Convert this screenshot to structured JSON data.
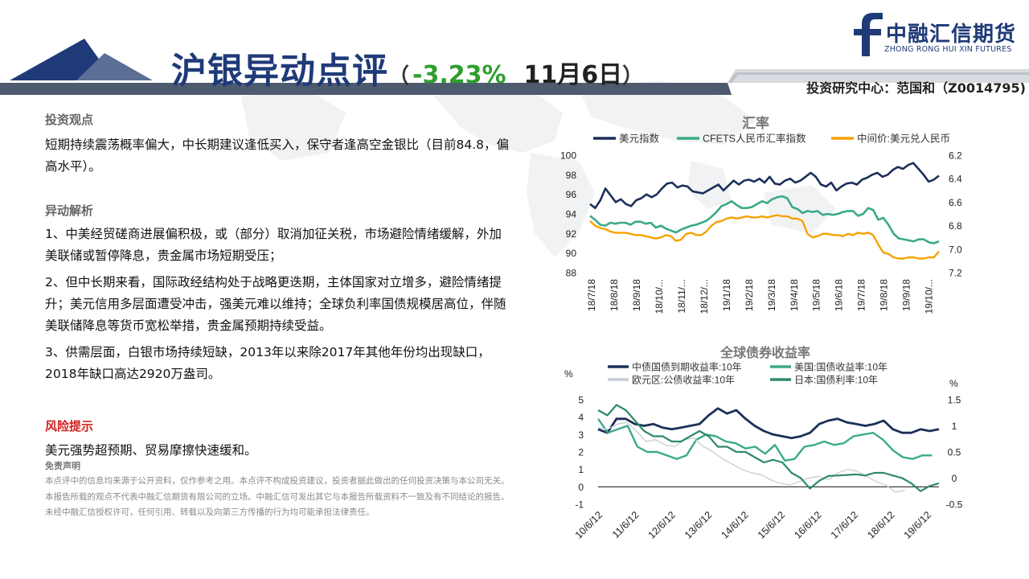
{
  "header": {
    "title": "沪银异动点评",
    "paren_open": "（",
    "change": "-3.23%",
    "date": "11月6日",
    "paren_close": "）",
    "logo_name": "中融汇信期货",
    "logo_en": "ZHONG RONG HUI XIN FUTURES",
    "author": "投资研究中心：范国和（Z0014795)"
  },
  "content": {
    "view_title": "投资观点",
    "view_text": "短期持续震荡概率偏大，中长期建议逢低买入，保守者逢高空金银比（目前84.8，偏高水平）。",
    "analysis_title": "异动解析",
    "analysis_items": [
      "1、中美经贸磋商进展偏积极，或（部分）取消加征关税，市场避险情绪缓解，外加美联储或暂停降息，贵金属市场短期受压；",
      "2、但中长期来看，国际政经结构处于战略更迭期，主体国家对立增多，避险情绪提升；美元信用多层面遭受冲击，强美元难以维持；全球负利率国债规模居高位，伴随美联储降息等货币宽松举措，贵金属预期持续受益。",
      "3、供需层面，白银市场持续短缺，2013年以来除2017年其他年份均出现缺口，2018年缺口高达2920万盎司。"
    ],
    "risk_title": "风险提示",
    "risk_text": "美元强势超预期、贸易摩擦快速缓和。",
    "disclaimer_title": "免责声明",
    "disclaimer_text": "本点评中的信息均来源于公开资料，仅作参考之用。本点评不构成投资建议，投资者据此做出的任何投资决策与本公司无关。本报告所载的观点不代表中融汇信期货有限公司的立场。中融汇信可发出其它与本报告所载资料不一致及有不同结论的报告。未经中融汇信授权许可，任何引用、转载以及向第三方传播的行为均可能承担法律责任。"
  },
  "chart_data": [
    {
      "type": "line",
      "title": "汇率",
      "x_ticks": [
        "18/7/18",
        "18/8/18",
        "18/9/18",
        "18/10/...",
        "18/11/...",
        "18/12/...",
        "19/1/18",
        "19/2/18",
        "19/3/18",
        "19/4/18",
        "19/5/18",
        "19/6/18",
        "19/7/18",
        "19/8/18",
        "19/9/18",
        "19/10/..."
      ],
      "y_left": {
        "ticks": [
          88,
          90,
          92,
          94,
          96,
          98,
          100
        ],
        "range": [
          88,
          100
        ]
      },
      "y_right": {
        "ticks": [
          "6.2",
          "6.4",
          "6.6",
          "6.8",
          "7.0",
          "7.2"
        ],
        "range": [
          6.2,
          7.2
        ],
        "inverted": true
      },
      "series": [
        {
          "name": "美元指数",
          "axis": "left",
          "color": "#1c2f5a",
          "values": [
            95.0,
            94.6,
            95.4,
            96.6,
            95.9,
            95.2,
            95.5,
            95.0,
            94.8,
            95.4,
            95.6,
            96.0,
            95.7,
            96.0,
            96.6,
            97.1,
            97.2,
            96.7,
            96.9,
            96.8,
            96.3,
            96.2,
            96.1,
            96.4,
            96.7,
            97.0,
            96.4,
            96.9,
            97.4,
            97.0,
            97.4,
            97.5,
            97.3,
            97.6,
            97.2,
            97.8,
            97.1,
            97.0,
            97.4,
            97.6,
            97.2,
            97.4,
            97.8,
            98.2,
            97.8,
            97.0,
            96.8,
            97.2,
            96.4,
            96.8,
            97.1,
            97.2,
            97.0,
            97.5,
            97.7,
            98.0,
            98.2,
            97.8,
            98.0,
            98.5,
            98.8,
            98.6,
            99.0,
            99.2,
            98.6,
            98.0,
            97.3,
            97.5,
            97.9
          ]
        },
        {
          "name": "CFETS人民币汇率指数",
          "axis": "left",
          "color": "#3aaa88",
          "values": [
            93.8,
            93.4,
            92.9,
            92.8,
            93.1,
            93.0,
            93.1,
            93.1,
            92.9,
            93.2,
            93.2,
            93.0,
            93.1,
            92.6,
            92.8,
            92.5,
            92.3,
            92.1,
            92.4,
            92.6,
            92.8,
            92.9,
            93.1,
            93.3,
            93.7,
            94.2,
            94.8,
            95.0,
            95.3,
            94.9,
            94.6,
            94.6,
            94.7,
            95.0,
            95.3,
            95.1,
            95.5,
            95.7,
            95.8,
            95.6,
            94.7,
            94.5,
            94.1,
            94.3,
            94.2,
            94.3,
            93.9,
            94.0,
            93.9,
            94.0,
            94.2,
            94.3,
            94.3,
            93.8,
            94.0,
            94.6,
            94.4,
            93.4,
            93.6,
            92.9,
            92.0,
            91.5,
            91.4,
            91.3,
            91.2,
            91.4,
            91.4,
            91.1,
            91.0,
            91.2
          ]
        },
        {
          "name": "中间价:美元兑人民币",
          "axis": "right",
          "color": "#f5a300",
          "values": [
            6.76,
            6.8,
            6.82,
            6.83,
            6.85,
            6.86,
            6.86,
            6.86,
            6.87,
            6.88,
            6.88,
            6.89,
            6.9,
            6.91,
            6.9,
            6.88,
            6.89,
            6.93,
            6.92,
            6.87,
            6.86,
            6.88,
            6.88,
            6.85,
            6.8,
            6.77,
            6.76,
            6.74,
            6.73,
            6.74,
            6.73,
            6.72,
            6.73,
            6.73,
            6.72,
            6.73,
            6.72,
            6.71,
            6.72,
            6.72,
            6.74,
            6.74,
            6.76,
            6.87,
            6.9,
            6.89,
            6.87,
            6.87,
            6.88,
            6.88,
            6.89,
            6.87,
            6.88,
            6.86,
            6.87,
            6.86,
            6.88,
            6.96,
            7.03,
            7.04,
            7.07,
            7.08,
            7.08,
            7.07,
            7.07,
            7.08,
            7.08,
            7.07,
            7.07,
            7.02
          ]
        }
      ]
    },
    {
      "type": "line",
      "title": "全球债券收益率",
      "x_ticks": [
        "10/6/12",
        "11/6/12",
        "12/6/12",
        "13/6/12",
        "14/6/12",
        "15/6/12",
        "16/6/12",
        "17/6/12",
        "18/6/12",
        "19/6/12"
      ],
      "y_left": {
        "unit": "%",
        "ticks": [
          -1,
          0,
          1,
          2,
          3,
          4,
          5
        ],
        "range": [
          -1,
          5
        ]
      },
      "y_right": {
        "unit": "%",
        "ticks": [
          "-0.5",
          "0",
          "0.5",
          "1",
          "1.5"
        ],
        "range": [
          -0.5,
          1.5
        ]
      },
      "series": [
        {
          "name": "中债国债到期收益率:10年",
          "axis": "left",
          "color": "#1c2f5a",
          "values": [
            3.3,
            3.1,
            3.9,
            3.9,
            3.6,
            3.5,
            3.6,
            3.4,
            3.3,
            3.4,
            3.5,
            3.6,
            4.1,
            4.5,
            4.2,
            4.4,
            3.9,
            3.5,
            3.2,
            3.0,
            2.9,
            2.8,
            2.9,
            3.1,
            3.6,
            3.8,
            3.9,
            3.7,
            3.6,
            3.5,
            3.6,
            3.8,
            3.3,
            3.1,
            3.1,
            3.3,
            3.2,
            3.3
          ]
        },
        {
          "name": "美国:国债收益率:10年",
          "axis": "left",
          "color": "#3aaa88",
          "values": [
            3.9,
            3.1,
            3.3,
            3.5,
            2.3,
            2.0,
            2.0,
            1.8,
            1.6,
            1.8,
            2.7,
            3.0,
            2.9,
            2.6,
            2.5,
            2.2,
            2.3,
            1.9,
            2.4,
            1.5,
            1.6,
            2.3,
            2.4,
            2.6,
            2.4,
            2.5,
            2.9,
            3.0,
            3.1,
            2.7,
            2.1,
            1.7,
            1.6,
            1.8,
            1.8
          ]
        },
        {
          "name": "欧元区:公债收益率:10年",
          "axis": "left",
          "color": "#c8cdd8",
          "values": [
            3.4,
            3.3,
            3.6,
            3.7,
            3.2,
            2.6,
            2.7,
            2.4,
            2.3,
            2.7,
            2.8,
            2.3,
            2.0,
            1.6,
            1.3,
            1.0,
            0.8,
            0.7,
            0.4,
            0.2,
            0.1,
            0.3,
            0.5,
            0.6,
            0.4,
            0.8,
            1.0,
            0.9,
            0.6,
            0.3,
            0.1,
            -0.3,
            -0.2
          ]
        },
        {
          "name": "日本:国债利率:10年",
          "axis": "right",
          "color": "#2e8b66",
          "values": [
            1.3,
            1.2,
            1.4,
            1.3,
            1.1,
            0.9,
            0.8,
            0.8,
            0.7,
            0.7,
            0.8,
            0.9,
            0.8,
            0.6,
            0.6,
            0.5,
            0.5,
            0.4,
            0.3,
            0.35,
            0.3,
            0.1,
            0.0,
            -0.2,
            -0.05,
            0.04,
            0.05,
            0.06,
            0.07,
            0.05,
            0.1,
            0.1,
            0.05,
            0.0,
            -0.1,
            -0.25,
            -0.15,
            -0.1
          ]
        }
      ]
    }
  ]
}
